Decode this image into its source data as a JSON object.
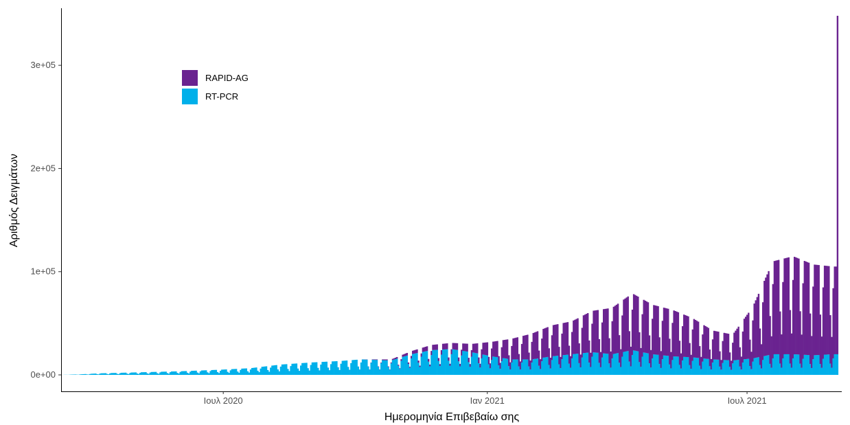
{
  "chart_data": {
    "type": "bar",
    "stacked": true,
    "title": "",
    "xlabel": "Ημερομηνία Επιβεβαίω σης",
    "ylabel": "Αριθμός Δειγμάτων",
    "ylim": [
      0,
      350000
    ],
    "y_ticks": [
      {
        "value": 0,
        "label": "0e+00"
      },
      {
        "value": 100000,
        "label": "1e+05"
      },
      {
        "value": 200000,
        "label": "2e+05"
      },
      {
        "value": 300000,
        "label": "3e+05"
      }
    ],
    "x_range": [
      "2020-03-10",
      "2021-09-05"
    ],
    "x_ticks": [
      {
        "date": "2020-07-01",
        "label": "Ιουλ 2020"
      },
      {
        "date": "2021-01-01",
        "label": "Ιαν 2021"
      },
      {
        "date": "2021-07-01",
        "label": "Ιουλ 2021"
      }
    ],
    "grid": false,
    "legend_position": "top-left",
    "series": [
      {
        "name": "RAPID-AG",
        "color": "#6a2390"
      },
      {
        "name": "RT-PCR",
        "color": "#00b0ea"
      }
    ],
    "weekly_points": [
      {
        "date": "2020-03-23",
        "rtpcr": 500,
        "rapid": 0
      },
      {
        "date": "2020-04-06",
        "rtpcr": 1500,
        "rapid": 0
      },
      {
        "date": "2020-05-04",
        "rtpcr": 2500,
        "rapid": 0
      },
      {
        "date": "2020-06-01",
        "rtpcr": 3500,
        "rapid": 0
      },
      {
        "date": "2020-06-29",
        "rtpcr": 5000,
        "rapid": 0
      },
      {
        "date": "2020-07-20",
        "rtpcr": 6500,
        "rapid": 0
      },
      {
        "date": "2020-08-10",
        "rtpcr": 10000,
        "rapid": 0
      },
      {
        "date": "2020-08-31",
        "rtpcr": 12000,
        "rapid": 0
      },
      {
        "date": "2020-09-21",
        "rtpcr": 13500,
        "rapid": 0
      },
      {
        "date": "2020-10-05",
        "rtpcr": 15000,
        "rapid": 0
      },
      {
        "date": "2020-10-26",
        "rtpcr": 14000,
        "rapid": 1000
      },
      {
        "date": "2020-11-09",
        "rtpcr": 20000,
        "rapid": 3000
      },
      {
        "date": "2020-11-23",
        "rtpcr": 24000,
        "rapid": 5000
      },
      {
        "date": "2020-12-07",
        "rtpcr": 25000,
        "rapid": 6000
      },
      {
        "date": "2020-12-21",
        "rtpcr": 22000,
        "rapid": 8000
      },
      {
        "date": "2021-01-04",
        "rtpcr": 18000,
        "rapid": 14000
      },
      {
        "date": "2021-01-18",
        "rtpcr": 15000,
        "rapid": 20000
      },
      {
        "date": "2021-02-01",
        "rtpcr": 15000,
        "rapid": 25000
      },
      {
        "date": "2021-02-15",
        "rtpcr": 18000,
        "rapid": 30000
      },
      {
        "date": "2021-03-01",
        "rtpcr": 20000,
        "rapid": 32000
      },
      {
        "date": "2021-03-15",
        "rtpcr": 22000,
        "rapid": 40000
      },
      {
        "date": "2021-03-29",
        "rtpcr": 20000,
        "rapid": 45000
      },
      {
        "date": "2021-04-12",
        "rtpcr": 24000,
        "rapid": 55000
      },
      {
        "date": "2021-04-26",
        "rtpcr": 20000,
        "rapid": 48000
      },
      {
        "date": "2021-05-10",
        "rtpcr": 18000,
        "rapid": 45000
      },
      {
        "date": "2021-05-24",
        "rtpcr": 17000,
        "rapid": 38000
      },
      {
        "date": "2021-06-07",
        "rtpcr": 15000,
        "rapid": 28000
      },
      {
        "date": "2021-06-21",
        "rtpcr": 14000,
        "rapid": 25000
      },
      {
        "date": "2021-07-05",
        "rtpcr": 16000,
        "rapid": 50000
      },
      {
        "date": "2021-07-19",
        "rtpcr": 20000,
        "rapid": 90000
      },
      {
        "date": "2021-08-02",
        "rtpcr": 20000,
        "rapid": 95000
      },
      {
        "date": "2021-08-16",
        "rtpcr": 19000,
        "rapid": 88000
      },
      {
        "date": "2021-08-30",
        "rtpcr": 20000,
        "rapid": 85000
      }
    ],
    "annotated_bars": [
      {
        "date": "2021-09-02",
        "rtpcr": 20000,
        "rapid": 328000
      }
    ]
  }
}
